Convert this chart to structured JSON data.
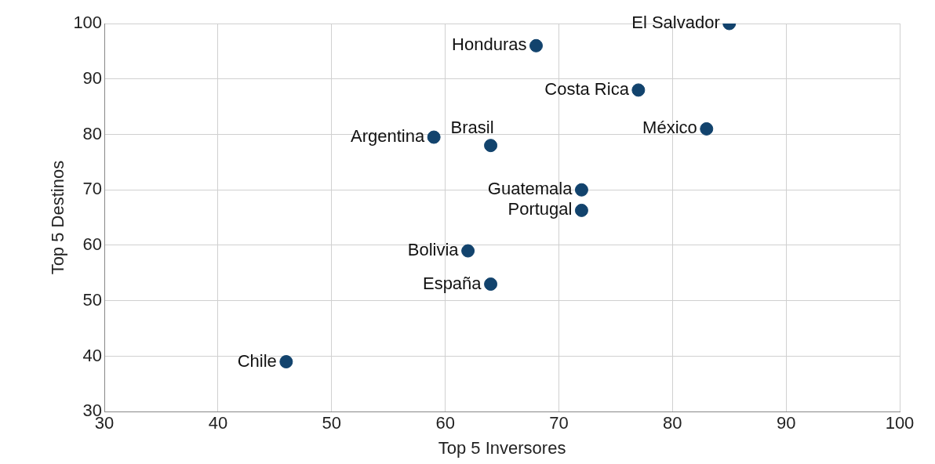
{
  "chart_data": {
    "type": "scatter",
    "xlabel": "Top 5 Inversores",
    "ylabel": "Top 5 Destinos",
    "x": [
      85,
      68,
      77,
      83,
      59,
      64,
      72,
      72,
      62,
      64,
      46
    ],
    "series": [
      {
        "color": "#12436d",
        "values": [
          100,
          96,
          88,
          81,
          79.5,
          78,
          70,
          66.3,
          59,
          53,
          39
        ]
      }
    ],
    "xlim": [
      30,
      100
    ],
    "xticks": [
      30,
      40,
      50,
      60,
      70,
      80,
      90,
      100
    ],
    "ylim": [
      30,
      100
    ],
    "yticks": [
      30,
      40,
      50,
      60,
      70,
      80,
      90,
      100
    ],
    "grid": true,
    "legend": false,
    "marker": "circle",
    "annotations": [
      {
        "text": "El Salvador",
        "x": 85,
        "y": 100
      },
      {
        "text": "Honduras",
        "x": 68,
        "y": 96
      },
      {
        "text": "Costa Rica",
        "x": 77,
        "y": 88
      },
      {
        "text": "México",
        "x": 83,
        "y": 81
      },
      {
        "text": "Argentina",
        "x": 59,
        "y": 79.5
      },
      {
        "text": "Brasil",
        "x": 64,
        "y": 78
      },
      {
        "text": "Guatemala",
        "x": 72,
        "y": 70
      },
      {
        "text": "Portugal",
        "x": 72,
        "y": 66.3
      },
      {
        "text": "Bolivia",
        "x": 62,
        "y": 59
      },
      {
        "text": "España",
        "x": 64,
        "y": 53
      },
      {
        "text": "Chile",
        "x": 46,
        "y": 39
      }
    ]
  }
}
